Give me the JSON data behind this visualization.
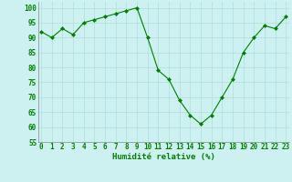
{
  "x": [
    0,
    1,
    2,
    3,
    4,
    5,
    6,
    7,
    8,
    9,
    10,
    11,
    12,
    13,
    14,
    15,
    16,
    17,
    18,
    19,
    20,
    21,
    22,
    23
  ],
  "y": [
    92,
    90,
    93,
    91,
    95,
    96,
    97,
    98,
    99,
    100,
    90,
    79,
    76,
    69,
    64,
    61,
    64,
    70,
    76,
    85,
    90,
    94,
    93,
    97
  ],
  "line_color": "#008000",
  "marker": "D",
  "marker_size": 2.0,
  "bg_color": "#cdf0f0",
  "grid_color": "#b0dede",
  "xlabel": "Humidité relative (%)",
  "xlabel_color": "#008000",
  "xlabel_fontsize": 6.5,
  "tick_color": "#008000",
  "tick_fontsize": 5.5,
  "ylim": [
    55,
    102
  ],
  "yticks": [
    55,
    60,
    65,
    70,
    75,
    80,
    85,
    90,
    95,
    100
  ],
  "xticks": [
    0,
    1,
    2,
    3,
    4,
    5,
    6,
    7,
    8,
    9,
    10,
    11,
    12,
    13,
    14,
    15,
    16,
    17,
    18,
    19,
    20,
    21,
    22,
    23
  ],
  "xlim": [
    -0.3,
    23.3
  ]
}
